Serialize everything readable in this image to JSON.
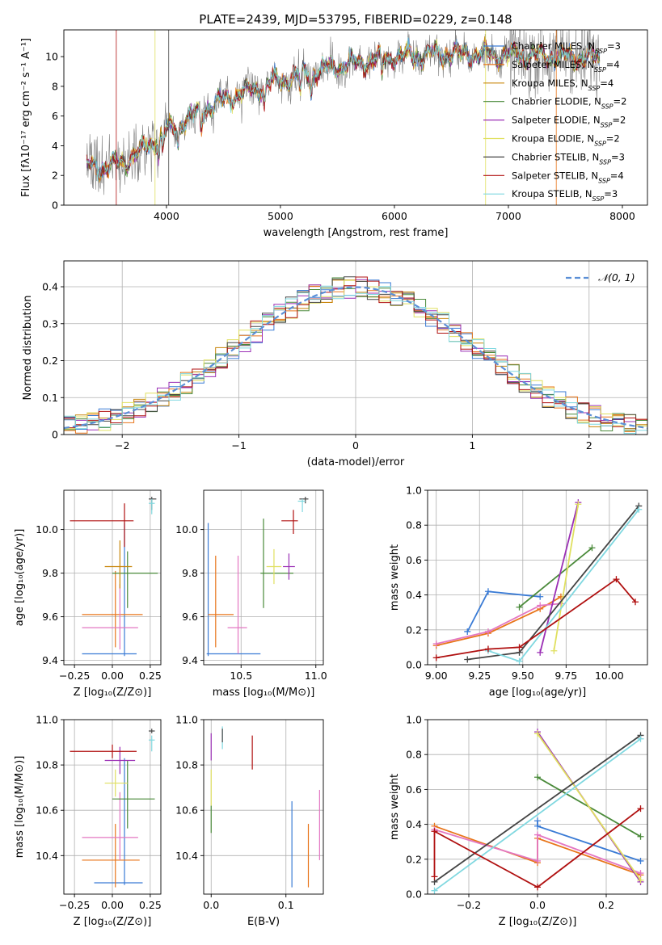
{
  "figure_title": "PLATE=2439, MJD=53795, FIBERID=0229, z=0.148",
  "legend": [
    {
      "label": "Chabrier MILES, N",
      "sub": "SSP",
      "suffix": "=3",
      "color": "#3a7bd5"
    },
    {
      "label": "Salpeter MILES, N",
      "sub": "SSP",
      "suffix": "=4",
      "color": "#e8751a"
    },
    {
      "label": "Kroupa MILES, N",
      "sub": "SSP",
      "suffix": "=4",
      "color": "#c8850a"
    },
    {
      "label": "Chabrier ELODIE, N",
      "sub": "SSP",
      "suffix": "=2",
      "color": "#4a8a3a"
    },
    {
      "label": "Salpeter ELODIE, N",
      "sub": "SSP",
      "suffix": "=2",
      "color": "#9b2fb5"
    },
    {
      "label": "Kroupa ELODIE, N",
      "sub": "SSP",
      "suffix": "=2",
      "color": "#e0e060"
    },
    {
      "label": "Chabrier STELIB, N",
      "sub": "SSP",
      "suffix": "=3",
      "color": "#444444"
    },
    {
      "label": "Salpeter STELIB, N",
      "sub": "SSP",
      "suffix": "=4",
      "color": "#b01010"
    },
    {
      "label": "Kroupa STELIB, N",
      "sub": "SSP",
      "suffix": "=3",
      "color": "#80d8e0"
    }
  ],
  "chart_data": [
    {
      "id": "spectrum",
      "type": "line",
      "xlabel": "wavelength [Angstrom, rest frame]",
      "ylabel": "Flux [fλ10⁻¹⁷ erg cm⁻² s⁻¹ A⁻¹]",
      "xlim": [
        3100,
        8220
      ],
      "ylim": [
        0,
        11.8
      ],
      "xticks": [
        4000,
        5000,
        6000,
        7000,
        8000
      ],
      "yticks": [
        0,
        2,
        4,
        6,
        8,
        10
      ],
      "continuum": [
        [
          3300,
          2.6
        ],
        [
          3500,
          2.6
        ],
        [
          3650,
          3.0
        ],
        [
          3800,
          3.8
        ],
        [
          4000,
          5.0
        ],
        [
          4300,
          6.3
        ],
        [
          4600,
          7.4
        ],
        [
          5000,
          8.4
        ],
        [
          5300,
          9.0
        ],
        [
          5600,
          9.5
        ],
        [
          6000,
          10.0
        ],
        [
          6500,
          10.2
        ],
        [
          7000,
          10.1
        ],
        [
          7500,
          10.0
        ],
        [
          7800,
          9.9
        ]
      ]
    },
    {
      "id": "residuals",
      "type": "step",
      "xlabel": "(data-model)/error",
      "ylabel": "Normed distribution",
      "xlim": [
        -2.5,
        2.5
      ],
      "ylim": [
        0,
        0.47
      ],
      "xticks": [
        -2,
        -1,
        0,
        1,
        2
      ],
      "yticks": [
        0,
        0.1,
        0.2,
        0.3,
        0.4
      ],
      "legend_label": "𝒩(0, 1)",
      "bin_width": 0.1
    },
    {
      "id": "age_vs_Z",
      "type": "errorbar",
      "xlabel": "Z [log₁₀(Z/Z⊙)]",
      "ylabel": "age  [log₁₀(age/yr)]",
      "xlim": [
        -0.32,
        0.32
      ],
      "ylim": [
        9.38,
        10.18
      ],
      "xticks": [
        -0.25,
        0,
        0.25
      ],
      "xticklabels": [
        "−0.25",
        "0.00",
        "0.25"
      ],
      "yticks": [
        9.4,
        9.6,
        9.8,
        10.0
      ],
      "yticklabels": [
        "9.4",
        "9.6",
        "9.8",
        "10.0"
      ],
      "points": [
        {
          "x": 0.08,
          "y": 9.43,
          "xerr": [
            0.28,
            0.08
          ],
          "yerr": [
            0.01,
            0.6
          ],
          "color": "#3a7bd5"
        },
        {
          "x": 0.02,
          "y": 9.61,
          "xerr": [
            0.22,
            0.18
          ],
          "yerr": [
            0.15,
            0.2
          ],
          "color": "#e8751a"
        },
        {
          "x": 0.05,
          "y": 9.55,
          "xerr": [
            0.25,
            0.12
          ],
          "yerr": [
            0.1,
            0.2
          ],
          "color": "#e377c2"
        },
        {
          "x": 0.1,
          "y": 9.8,
          "xerr": [
            0.1,
            0.2
          ],
          "yerr": [
            0.16,
            0.1
          ],
          "color": "#4a8a3a"
        },
        {
          "x": 0.05,
          "y": 9.83,
          "xerr": [
            0.1,
            0.08
          ],
          "yerr": [
            0.1,
            0.12
          ],
          "color": "#c8850a"
        },
        {
          "x": 0.08,
          "y": 10.04,
          "xerr": [
            0.36,
            0.06
          ],
          "yerr": [
            0.12,
            0.08
          ],
          "color": "#b01010"
        },
        {
          "x": 0.26,
          "y": 10.14,
          "xerr": [
            0.02,
            0.03
          ],
          "yerr": [
            0.05,
            0.01
          ],
          "color": "#444444"
        },
        {
          "x": 0.26,
          "y": 10.12,
          "xerr": [
            0.02,
            0.02
          ],
          "yerr": [
            0.05,
            0.02
          ],
          "color": "#80d8e0"
        }
      ]
    },
    {
      "id": "age_vs_mass",
      "type": "errorbar",
      "xlabel": "mass [log₁₀(M/M⊙)]",
      "ylabel": "",
      "xlim": [
        10.25,
        11.05
      ],
      "ylim": [
        9.38,
        10.18
      ],
      "xticks": [
        10.5,
        11.0
      ],
      "xticklabels": [
        "10.5",
        "11.0"
      ],
      "yticks": [
        9.4,
        9.6,
        9.8,
        10.0
      ],
      "yticklabels": [
        "9.4",
        "9.6",
        "9.8",
        "10.0"
      ],
      "points": [
        {
          "x": 10.28,
          "y": 9.43,
          "xerr": [
            0.01,
            0.35
          ],
          "yerr": [
            0.01,
            0.6
          ],
          "color": "#3a7bd5"
        },
        {
          "x": 10.33,
          "y": 9.61,
          "xerr": [
            0.05,
            0.12
          ],
          "yerr": [
            0.15,
            0.27
          ],
          "color": "#e8751a"
        },
        {
          "x": 10.48,
          "y": 9.55,
          "xerr": [
            0.07,
            0.06
          ],
          "yerr": [
            0.12,
            0.33
          ],
          "color": "#e377c2"
        },
        {
          "x": 10.65,
          "y": 9.8,
          "xerr": [
            0.02,
            0.2
          ],
          "yerr": [
            0.16,
            0.25
          ],
          "color": "#4a8a3a"
        },
        {
          "x": 10.72,
          "y": 9.83,
          "xerr": [
            0.05,
            0.05
          ],
          "yerr": [
            0.08,
            0.08
          ],
          "color": "#e0e060"
        },
        {
          "x": 10.82,
          "y": 9.83,
          "xerr": [
            0.04,
            0.04
          ],
          "yerr": [
            0.06,
            0.06
          ],
          "color": "#9b2fb5"
        },
        {
          "x": 10.85,
          "y": 10.04,
          "xerr": [
            0.08,
            0.03
          ],
          "yerr": [
            0.06,
            0.05
          ],
          "color": "#b01010"
        },
        {
          "x": 10.93,
          "y": 10.14,
          "xerr": [
            0.04,
            0.02
          ],
          "yerr": [
            0.02,
            0.01
          ],
          "color": "#444444"
        },
        {
          "x": 10.91,
          "y": 10.13,
          "xerr": [
            0.03,
            0.02
          ],
          "yerr": [
            0.05,
            0.01
          ],
          "color": "#80d8e0"
        }
      ]
    },
    {
      "id": "weight_vs_age",
      "type": "line",
      "xlabel": "age  [log₁₀(age/yr)]",
      "ylabel": "mass weight",
      "xlim": [
        8.95,
        10.22
      ],
      "ylim": [
        0,
        1
      ],
      "xticks": [
        9.0,
        9.25,
        9.5,
        9.75,
        10.0
      ],
      "xticklabels": [
        "9.00",
        "9.25",
        "9.50",
        "9.75",
        "10.00"
      ],
      "yticks": [
        0,
        0.2,
        0.4,
        0.6,
        0.8,
        1.0
      ],
      "yticklabels": [
        "0.0",
        "0.2",
        "0.4",
        "0.6",
        "0.8",
        "1.0"
      ],
      "series": [
        {
          "color": "#3a7bd5",
          "points": [
            [
              9.18,
              0.19
            ],
            [
              9.3,
              0.42
            ],
            [
              9.6,
              0.39
            ]
          ]
        },
        {
          "color": "#e8751a",
          "points": [
            [
              9.0,
              0.11
            ],
            [
              9.3,
              0.18
            ],
            [
              9.6,
              0.32
            ],
            [
              9.72,
              0.39
            ]
          ]
        },
        {
          "color": "#e377c2",
          "points": [
            [
              9.0,
              0.12
            ],
            [
              9.3,
              0.19
            ],
            [
              9.6,
              0.34
            ],
            [
              9.72,
              0.35
            ]
          ]
        },
        {
          "color": "#4a8a3a",
          "points": [
            [
              9.48,
              0.33
            ],
            [
              9.9,
              0.67
            ]
          ]
        },
        {
          "color": "#9b2fb5",
          "points": [
            [
              9.6,
              0.07
            ],
            [
              9.82,
              0.93
            ]
          ]
        },
        {
          "color": "#e0e060",
          "points": [
            [
              9.68,
              0.08
            ],
            [
              9.82,
              0.92
            ]
          ]
        },
        {
          "color": "#444444",
          "points": [
            [
              9.18,
              0.03
            ],
            [
              9.48,
              0.07
            ],
            [
              10.17,
              0.91
            ]
          ]
        },
        {
          "color": "#80d8e0",
          "points": [
            [
              9.3,
              0.08
            ],
            [
              9.48,
              0.02
            ],
            [
              10.17,
              0.89
            ]
          ]
        },
        {
          "color": "#b01010",
          "points": [
            [
              9.0,
              0.04
            ],
            [
              9.3,
              0.09
            ],
            [
              9.48,
              0.1
            ],
            [
              10.04,
              0.49
            ],
            [
              10.15,
              0.36
            ]
          ]
        }
      ]
    },
    {
      "id": "mass_vs_Z",
      "type": "errorbar",
      "xlabel": "Z [log₁₀(Z/Z⊙)]",
      "ylabel": "mass [log₁₀(M/M⊙)]",
      "xlim": [
        -0.32,
        0.32
      ],
      "ylim": [
        10.23,
        11.0
      ],
      "xticks": [
        -0.25,
        0,
        0.25
      ],
      "xticklabels": [
        "−0.25",
        "0.00",
        "0.25"
      ],
      "yticks": [
        10.4,
        10.6,
        10.8,
        11.0
      ],
      "yticklabels": [
        "10.4",
        "10.6",
        "10.8",
        "11.0"
      ],
      "points": [
        {
          "x": 0.08,
          "y": 10.28,
          "xerr": [
            0.2,
            0.12
          ],
          "yerr": [
            0.01,
            0.55
          ],
          "color": "#3a7bd5"
        },
        {
          "x": 0.02,
          "y": 10.38,
          "xerr": [
            0.22,
            0.16
          ],
          "yerr": [
            0.12,
            0.16
          ],
          "color": "#e8751a"
        },
        {
          "x": 0.05,
          "y": 10.48,
          "xerr": [
            0.25,
            0.12
          ],
          "yerr": [
            0.1,
            0.2
          ],
          "color": "#e377c2"
        },
        {
          "x": 0.1,
          "y": 10.65,
          "xerr": [
            0.1,
            0.18
          ],
          "yerr": [
            0.13,
            0.17
          ],
          "color": "#4a8a3a"
        },
        {
          "x": 0.02,
          "y": 10.72,
          "xerr": [
            0.07,
            0.08
          ],
          "yerr": [
            0.06,
            0.06
          ],
          "color": "#e0e060"
        },
        {
          "x": 0.05,
          "y": 10.82,
          "xerr": [
            0.1,
            0.1
          ],
          "yerr": [
            0.06,
            0.06
          ],
          "color": "#9b2fb5"
        },
        {
          "x": 0.0,
          "y": 10.86,
          "xerr": [
            0.28,
            0.16
          ],
          "yerr": [
            0.03,
            0.03
          ],
          "color": "#b01010"
        },
        {
          "x": 0.26,
          "y": 10.95,
          "xerr": [
            0.02,
            0.02
          ],
          "yerr": [
            0.01,
            0.01
          ],
          "color": "#444444"
        },
        {
          "x": 0.26,
          "y": 10.91,
          "xerr": [
            0.02,
            0.02
          ],
          "yerr": [
            0.05,
            0.02
          ],
          "color": "#80d8e0"
        }
      ]
    },
    {
      "id": "mass_vs_EBV",
      "type": "errorbar",
      "xlabel": "E(B-V)",
      "ylabel": "",
      "xlim": [
        -0.01,
        0.15
      ],
      "ylim": [
        10.23,
        11.0
      ],
      "xticks": [
        0,
        0.1
      ],
      "xticklabels": [
        "0.0",
        "0.1"
      ],
      "yticks": [
        10.4,
        10.6,
        10.8,
        11.0
      ],
      "yticklabels": [
        "10.4",
        "10.6",
        "10.8",
        "11.0"
      ],
      "points": [
        {
          "x": 0.0,
          "y": 10.88,
          "xerr": [
            0,
            0
          ],
          "yerr": [
            0.06,
            0.06
          ],
          "color": "#9b2fb5"
        },
        {
          "x": 0.0,
          "y": 10.7,
          "xerr": [
            0,
            0
          ],
          "yerr": [
            0.08,
            0.08
          ],
          "color": "#e0e060"
        },
        {
          "x": 0.0,
          "y": 10.55,
          "xerr": [
            0,
            0
          ],
          "yerr": [
            0.05,
            0.07
          ],
          "color": "#4a8a3a"
        },
        {
          "x": 0.015,
          "y": 10.92,
          "xerr": [
            0,
            0
          ],
          "yerr": [
            0.05,
            0.05
          ],
          "color": "#80d8e0"
        },
        {
          "x": 0.015,
          "y": 10.92,
          "xerr": [
            0,
            0
          ],
          "yerr": [
            0.02,
            0.04
          ],
          "color": "#444444"
        },
        {
          "x": 0.055,
          "y": 10.86,
          "xerr": [
            0,
            0
          ],
          "yerr": [
            0.08,
            0.07
          ],
          "color": "#b01010"
        },
        {
          "x": 0.108,
          "y": 10.45,
          "xerr": [
            0,
            0
          ],
          "yerr": [
            0.19,
            0.19
          ],
          "color": "#3a7bd5"
        },
        {
          "x": 0.13,
          "y": 10.4,
          "xerr": [
            0,
            0
          ],
          "yerr": [
            0.14,
            0.14
          ],
          "color": "#e8751a"
        },
        {
          "x": 0.145,
          "y": 10.53,
          "xerr": [
            0,
            0
          ],
          "yerr": [
            0.15,
            0.16
          ],
          "color": "#e377c2"
        }
      ]
    },
    {
      "id": "weight_vs_Z",
      "type": "line",
      "xlabel": "Z [log₁₀(Z/Z⊙)]",
      "ylabel": "mass weight",
      "xlim": [
        -0.32,
        0.32
      ],
      "ylim": [
        0,
        1
      ],
      "xticks": [
        -0.2,
        0,
        0.2
      ],
      "xticklabels": [
        "−0.2",
        "0.0",
        "0.2"
      ],
      "yticks": [
        0,
        0.2,
        0.4,
        0.6,
        0.8,
        1.0
      ],
      "yticklabels": [
        "0.0",
        "0.2",
        "0.4",
        "0.6",
        "0.8",
        "1.0"
      ],
      "series": [
        {
          "color": "#3a7bd5",
          "points": [
            [
              0.0,
              0.42
            ],
            [
              0.0,
              0.39
            ],
            [
              0.3,
              0.19
            ]
          ]
        },
        {
          "color": "#e8751a",
          "points": [
            [
              -0.3,
              0.39
            ],
            [
              0.0,
              0.18
            ],
            [
              0.0,
              0.32
            ],
            [
              0.3,
              0.11
            ]
          ]
        },
        {
          "color": "#e377c2",
          "points": [
            [
              -0.3,
              0.37
            ],
            [
              0.0,
              0.19
            ],
            [
              0.0,
              0.34
            ],
            [
              0.3,
              0.12
            ]
          ]
        },
        {
          "color": "#4a8a3a",
          "points": [
            [
              0.0,
              0.67
            ],
            [
              0.3,
              0.33
            ]
          ]
        },
        {
          "color": "#9b2fb5",
          "points": [
            [
              0.0,
              0.93
            ],
            [
              0.3,
              0.07
            ]
          ]
        },
        {
          "color": "#e0e060",
          "points": [
            [
              0.0,
              0.92
            ],
            [
              0.3,
              0.08
            ]
          ]
        },
        {
          "color": "#444444",
          "points": [
            [
              -0.3,
              0.07
            ],
            [
              0.3,
              0.91
            ]
          ]
        },
        {
          "color": "#80d8e0",
          "points": [
            [
              -0.3,
              0.02
            ],
            [
              0.3,
              0.89
            ]
          ]
        },
        {
          "color": "#b01010",
          "points": [
            [
              -0.3,
              0.1
            ],
            [
              -0.3,
              0.36
            ],
            [
              0.0,
              0.04
            ],
            [
              0.3,
              0.49
            ]
          ]
        }
      ]
    }
  ]
}
